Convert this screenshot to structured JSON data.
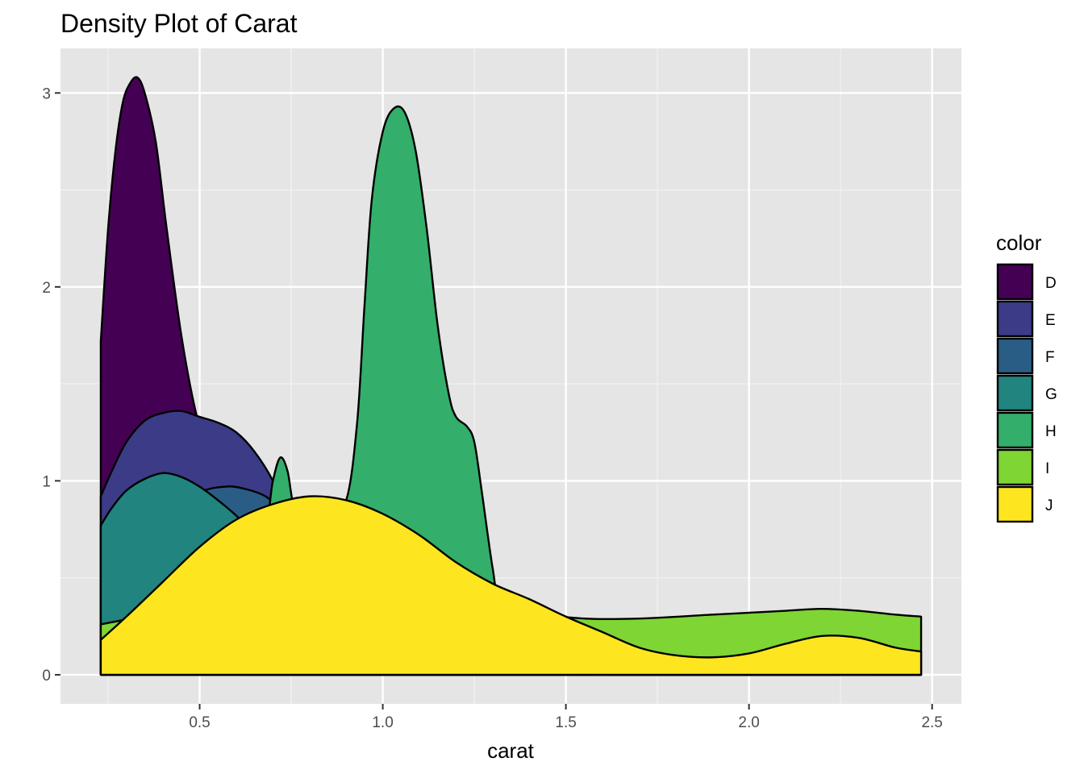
{
  "chart_data": {
    "type": "area",
    "title": "Density Plot of Carat",
    "xlabel": "carat",
    "ylabel": "",
    "xlim": [
      0.12,
      2.58
    ],
    "ylim": [
      -0.15,
      3.23
    ],
    "x_ticks": [
      0.5,
      1.0,
      1.5,
      2.0,
      2.5
    ],
    "x_tick_labels": [
      "0.5",
      "1.0",
      "1.5",
      "2.0",
      "2.5"
    ],
    "y_ticks": [
      0,
      1,
      2,
      3
    ],
    "y_tick_labels": [
      "0",
      "1",
      "2",
      "3"
    ],
    "grid": true,
    "legend": {
      "title": "color",
      "position": "right"
    },
    "series": [
      {
        "name": "D",
        "color": "#440154",
        "points": [
          [
            0.23,
            1.72
          ],
          [
            0.25,
            2.3
          ],
          [
            0.27,
            2.7
          ],
          [
            0.29,
            2.95
          ],
          [
            0.31,
            3.05
          ],
          [
            0.33,
            3.08
          ],
          [
            0.35,
            3.0
          ],
          [
            0.38,
            2.75
          ],
          [
            0.41,
            2.3
          ],
          [
            0.45,
            1.75
          ],
          [
            0.49,
            1.35
          ],
          [
            0.55,
            0.95
          ],
          [
            0.6,
            0.7
          ],
          [
            0.65,
            0.5
          ],
          [
            0.7,
            0.35
          ],
          [
            0.8,
            0.2
          ],
          [
            0.9,
            0.12
          ],
          [
            1.0,
            0.05
          ],
          [
            1.2,
            0.02
          ],
          [
            1.5,
            0.0
          ],
          [
            2.47,
            0.0
          ]
        ]
      },
      {
        "name": "E",
        "color": "#3b3b88",
        "points": [
          [
            0.23,
            0.92
          ],
          [
            0.26,
            1.05
          ],
          [
            0.3,
            1.2
          ],
          [
            0.35,
            1.31
          ],
          [
            0.4,
            1.35
          ],
          [
            0.45,
            1.36
          ],
          [
            0.5,
            1.33
          ],
          [
            0.55,
            1.3
          ],
          [
            0.6,
            1.25
          ],
          [
            0.65,
            1.15
          ],
          [
            0.7,
            1.0
          ],
          [
            0.75,
            0.78
          ],
          [
            0.8,
            0.6
          ],
          [
            0.9,
            0.4
          ],
          [
            1.0,
            0.25
          ],
          [
            1.2,
            0.12
          ],
          [
            1.5,
            0.05
          ],
          [
            2.0,
            0.02
          ],
          [
            2.47,
            0.0
          ]
        ]
      },
      {
        "name": "F",
        "color": "#2a5d85",
        "points": [
          [
            0.23,
            0.5
          ],
          [
            0.3,
            0.62
          ],
          [
            0.4,
            0.82
          ],
          [
            0.5,
            0.94
          ],
          [
            0.57,
            0.97
          ],
          [
            0.62,
            0.96
          ],
          [
            0.68,
            0.92
          ],
          [
            0.72,
            0.85
          ],
          [
            0.78,
            0.75
          ],
          [
            0.85,
            0.72
          ],
          [
            0.95,
            0.6
          ],
          [
            1.1,
            0.4
          ],
          [
            1.3,
            0.2
          ],
          [
            1.6,
            0.08
          ],
          [
            2.0,
            0.03
          ],
          [
            2.47,
            0.0
          ]
        ]
      },
      {
        "name": "G",
        "color": "#21847f",
        "points": [
          [
            0.23,
            0.77
          ],
          [
            0.26,
            0.86
          ],
          [
            0.3,
            0.95
          ],
          [
            0.35,
            1.01
          ],
          [
            0.4,
            1.04
          ],
          [
            0.45,
            1.02
          ],
          [
            0.5,
            0.97
          ],
          [
            0.55,
            0.9
          ],
          [
            0.6,
            0.82
          ],
          [
            0.65,
            0.72
          ],
          [
            0.7,
            0.6
          ],
          [
            0.8,
            0.45
          ],
          [
            0.9,
            0.3
          ],
          [
            1.0,
            0.2
          ],
          [
            1.2,
            0.1
          ],
          [
            1.5,
            0.05
          ],
          [
            2.0,
            0.02
          ],
          [
            2.47,
            0.0
          ]
        ]
      },
      {
        "name": "H",
        "color": "#33ae6b",
        "points": [
          [
            0.62,
            0.72
          ],
          [
            0.68,
            0.8
          ],
          [
            0.7,
            1.0
          ],
          [
            0.72,
            1.12
          ],
          [
            0.74,
            1.05
          ],
          [
            0.76,
            0.85
          ],
          [
            0.8,
            0.8
          ],
          [
            0.85,
            0.85
          ],
          [
            0.9,
            0.9
          ],
          [
            0.93,
            1.3
          ],
          [
            0.95,
            1.9
          ],
          [
            0.97,
            2.45
          ],
          [
            1.0,
            2.8
          ],
          [
            1.03,
            2.92
          ],
          [
            1.06,
            2.9
          ],
          [
            1.09,
            2.7
          ],
          [
            1.12,
            2.3
          ],
          [
            1.15,
            1.8
          ],
          [
            1.18,
            1.45
          ],
          [
            1.2,
            1.33
          ],
          [
            1.23,
            1.28
          ],
          [
            1.25,
            1.2
          ],
          [
            1.27,
            0.95
          ],
          [
            1.3,
            0.55
          ],
          [
            1.32,
            0.4
          ],
          [
            1.4,
            0.25
          ],
          [
            1.6,
            0.12
          ],
          [
            2.0,
            0.04
          ],
          [
            2.47,
            0.0
          ]
        ]
      },
      {
        "name": "I",
        "color": "#7ed534",
        "points": [
          [
            0.23,
            0.26
          ],
          [
            0.4,
            0.32
          ],
          [
            0.6,
            0.38
          ],
          [
            0.8,
            0.42
          ],
          [
            1.0,
            0.42
          ],
          [
            1.2,
            0.38
          ],
          [
            1.4,
            0.32
          ],
          [
            1.55,
            0.29
          ],
          [
            1.7,
            0.29
          ],
          [
            1.9,
            0.31
          ],
          [
            2.1,
            0.33
          ],
          [
            2.2,
            0.34
          ],
          [
            2.3,
            0.33
          ],
          [
            2.4,
            0.31
          ],
          [
            2.47,
            0.3
          ]
        ]
      },
      {
        "name": "J",
        "color": "#fde61f",
        "points": [
          [
            0.23,
            0.18
          ],
          [
            0.3,
            0.3
          ],
          [
            0.4,
            0.48
          ],
          [
            0.5,
            0.66
          ],
          [
            0.6,
            0.8
          ],
          [
            0.7,
            0.88
          ],
          [
            0.8,
            0.92
          ],
          [
            0.9,
            0.9
          ],
          [
            1.0,
            0.83
          ],
          [
            1.1,
            0.72
          ],
          [
            1.2,
            0.58
          ],
          [
            1.3,
            0.47
          ],
          [
            1.4,
            0.39
          ],
          [
            1.5,
            0.3
          ],
          [
            1.6,
            0.22
          ],
          [
            1.7,
            0.14
          ],
          [
            1.8,
            0.1
          ],
          [
            1.9,
            0.09
          ],
          [
            2.0,
            0.11
          ],
          [
            2.1,
            0.16
          ],
          [
            2.2,
            0.2
          ],
          [
            2.3,
            0.19
          ],
          [
            2.4,
            0.14
          ],
          [
            2.47,
            0.12
          ]
        ]
      }
    ]
  }
}
